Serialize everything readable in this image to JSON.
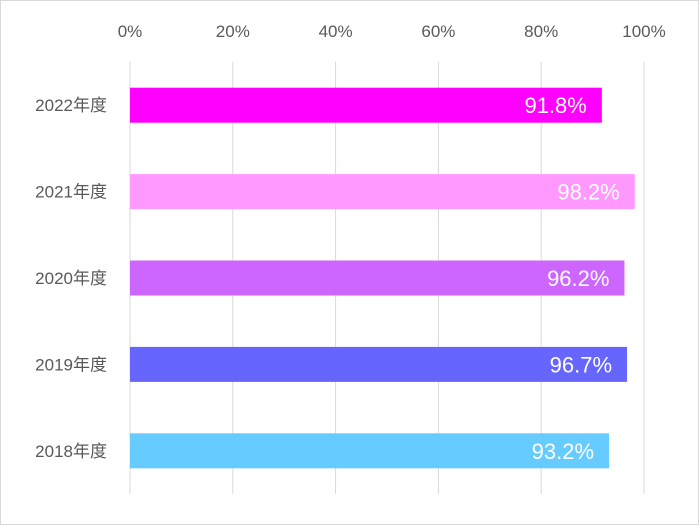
{
  "chart_data": {
    "type": "bar",
    "orientation": "horizontal",
    "categories": [
      "2022年度",
      "2021年度",
      "2020年度",
      "2019年度",
      "2018年度"
    ],
    "values": [
      91.8,
      98.2,
      96.2,
      96.7,
      93.2
    ],
    "data_labels": [
      "91.8%",
      "98.2%",
      "96.2%",
      "96.7%",
      "93.2%"
    ],
    "colors": [
      "#ff00ff",
      "#ff99ff",
      "#cc66ff",
      "#6666ff",
      "#66ccff"
    ],
    "xlim": [
      0,
      100
    ],
    "x_ticks": [
      0,
      20,
      40,
      60,
      80,
      100
    ],
    "x_tick_labels": [
      "0%",
      "20%",
      "40%",
      "60%",
      "80%",
      "100%"
    ],
    "x_axis_position": "top",
    "grid": true,
    "legend": "none",
    "title": "",
    "xlabel": "",
    "ylabel": ""
  }
}
